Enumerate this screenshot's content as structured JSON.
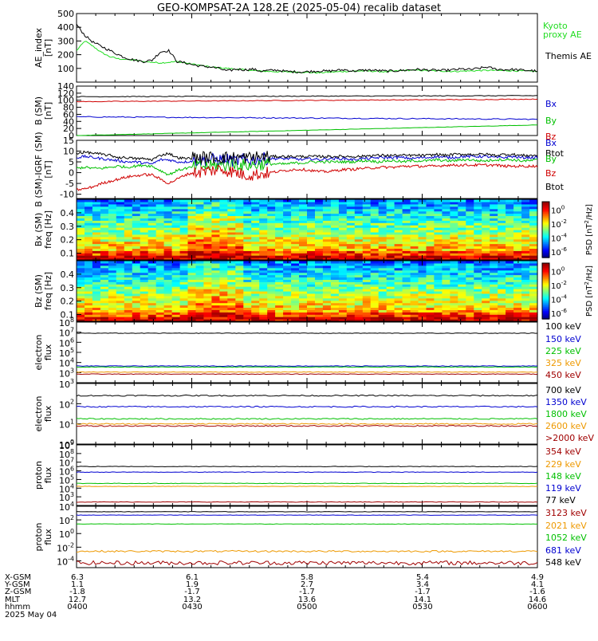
{
  "title": "GEO-KOMPSAT-2A 128.2E (2025-05-04) recalib dataset",
  "colors": {
    "black": "#000000",
    "blue": "#0000d0",
    "green": "#00c000",
    "red": "#d00000",
    "lime": "#22dd22",
    "orange": "#ee9900",
    "maroon": "#a00000"
  },
  "chart_data": [
    {
      "id": "ae",
      "type": "line",
      "ylabel": "AE_index [nT]",
      "ylim": [
        0,
        500
      ],
      "yticks": [
        "100",
        "200",
        "300",
        "400",
        "500"
      ],
      "series": [
        {
          "name": "Kyoto proxy AE",
          "color": "#22dd22",
          "values": [
            230,
            300,
            260,
            215,
            185,
            170,
            165,
            160,
            150,
            145,
            140,
            145,
            150,
            140,
            130,
            120,
            110,
            105,
            100,
            95,
            90,
            85,
            80,
            78,
            76,
            75,
            74,
            72,
            70,
            68,
            72,
            75,
            78,
            80,
            82,
            80,
            78,
            75,
            80,
            85,
            88,
            86,
            84,
            82,
            80,
            78,
            80,
            82,
            84,
            86,
            85,
            84,
            83,
            82,
            80,
            78
          ]
        },
        {
          "name": "Themis AE",
          "color": "#000000",
          "values": [
            420,
            340,
            290,
            260,
            230,
            200,
            175,
            160,
            150,
            160,
            220,
            230,
            150,
            140,
            125,
            115,
            110,
            100,
            80,
            95,
            90,
            95,
            80,
            85,
            88,
            78,
            76,
            74,
            78,
            82,
            80,
            85,
            90,
            80,
            85,
            88,
            84,
            80,
            82,
            86,
            90,
            92,
            88,
            86,
            85,
            90,
            95,
            92,
            100,
            110,
            95,
            90,
            92,
            88,
            85,
            80
          ]
        }
      ],
      "legend": [
        "Kyoto proxy AE",
        "Themis AE"
      ]
    },
    {
      "id": "bsm",
      "type": "line",
      "ylabel": "B (SM) [nT]",
      "ylim": [
        0,
        140
      ],
      "yticks": [
        "0",
        "20",
        "40",
        "60",
        "80",
        "100",
        "120",
        "140"
      ],
      "series": [
        {
          "name": "Bx",
          "color": "#0000d0",
          "start": 53,
          "end": 46,
          "noise": 1.5
        },
        {
          "name": "By",
          "color": "#00c000",
          "start": 0,
          "end": 30,
          "noise": 0.5
        },
        {
          "name": "Bz",
          "color": "#d00000",
          "start": 96,
          "end": 103,
          "noise": 1.0
        },
        {
          "name": "Btot",
          "color": "#000000",
          "start": 110,
          "end": 113,
          "noise": 1.0
        }
      ],
      "legend": [
        "Bx",
        "By",
        "Bz",
        "Btot"
      ]
    },
    {
      "id": "bigrf",
      "type": "line",
      "ylabel": "B (SM)-IGRF (SM) [nT]",
      "ylim": [
        -12,
        15
      ],
      "yticks": [
        "-10",
        "-5",
        "0",
        "5",
        "10",
        "15"
      ],
      "series": [
        {
          "name": "Bx",
          "color": "#0000d0",
          "values": [
            7,
            7.5,
            7,
            6.5,
            6,
            5.5,
            5,
            5,
            4.5,
            4,
            6,
            6,
            5,
            5,
            5.5,
            6,
            6,
            6,
            6,
            5.5,
            6,
            6,
            6.5,
            6.5,
            6.5,
            6.5,
            6.5,
            6,
            6.5,
            6,
            6.5,
            6.5,
            6.5,
            6,
            6.5,
            6.5,
            7,
            7,
            7,
            7,
            6.5,
            7,
            7,
            7.5,
            7,
            7,
            7.5,
            7.5,
            7.5,
            7.5,
            7,
            7,
            7.5,
            7,
            7,
            7
          ]
        },
        {
          "name": "By",
          "color": "#00c000",
          "values": [
            2,
            2.5,
            2,
            2,
            2.5,
            3,
            2.5,
            3,
            3.5,
            3,
            1,
            -1,
            1,
            2,
            2.5,
            3,
            3,
            3.5,
            3.5,
            4,
            3.5,
            3.5,
            4,
            4,
            4,
            4,
            4.5,
            4.5,
            5,
            5,
            5,
            5,
            5,
            5,
            5.5,
            5.5,
            5,
            5.5,
            5.5,
            5,
            5.5,
            5.5,
            5.5,
            6,
            5.5,
            5.5,
            6,
            6,
            5.5,
            5.5,
            6,
            6,
            6,
            5.5,
            5.5,
            6
          ]
        },
        {
          "name": "Bz",
          "color": "#d00000",
          "values": [
            -8,
            -7.5,
            -6.5,
            -5,
            -4,
            -3,
            -2,
            -1.5,
            -1,
            -1,
            -3,
            -5,
            -3,
            -1,
            0,
            0.5,
            1,
            1.5,
            1,
            0,
            -1,
            -1,
            -0.5,
            0,
            0.5,
            1,
            1.5,
            1.5,
            1,
            0.5,
            0.5,
            1,
            1.5,
            1.5,
            2,
            2,
            2.5,
            2.5,
            2.5,
            3,
            3,
            3,
            3,
            3,
            3.5,
            3.5,
            3.5,
            3.5,
            3.5,
            3.5,
            3.5,
            3,
            3,
            3,
            3,
            3
          ]
        },
        {
          "name": "Btot",
          "color": "#000000",
          "values": [
            9,
            9.5,
            9,
            8.5,
            8,
            7,
            7,
            6.5,
            6.5,
            6,
            8,
            9,
            7,
            6.5,
            7,
            7,
            7,
            7,
            7,
            7,
            7,
            7,
            7.5,
            7.5,
            7.5,
            7.5,
            7.5,
            7.5,
            7.5,
            7.5,
            7.5,
            7.5,
            7.5,
            7.5,
            7.5,
            8,
            8,
            8,
            8,
            8,
            8,
            8,
            8,
            8.5,
            8,
            8.5,
            8.5,
            8.5,
            8.5,
            8.5,
            8,
            8.5,
            8.5,
            8,
            8,
            8
          ]
        }
      ],
      "legend": [
        "Bx",
        "By",
        "Bz",
        "Btot"
      ]
    },
    {
      "id": "bxspec",
      "type": "heatmap",
      "ylabel": "Bx (SM) freq [Hz]",
      "ylim": [
        0.05,
        0.5
      ],
      "yticks": [
        "0.1",
        "0.2",
        "0.3",
        "0.4"
      ],
      "colorbar": {
        "label": "PSD [nT^2/Hz]",
        "ticks": [
          "10^0",
          "10^-2",
          "10^-4",
          "10^-6"
        ]
      }
    },
    {
      "id": "bzspec",
      "type": "heatmap",
      "ylabel": "Bz (SM) freq [Hz]",
      "ylim": [
        0.05,
        0.5
      ],
      "yticks": [
        "0.1",
        "0.2",
        "0.3",
        "0.4"
      ],
      "colorbar": {
        "label": "PSD [nT^2/Hz]",
        "ticks": [
          "10^0",
          "10^-2",
          "10^-4",
          "10^-6"
        ]
      }
    },
    {
      "id": "eflux1",
      "type": "line",
      "ylabel": "electron flux",
      "log": true,
      "ylim": [
        2,
        8
      ],
      "yticks": [
        "10^3",
        "10^4",
        "10^5",
        "10^6",
        "10^7",
        "10^8"
      ],
      "ytick_values": [
        3,
        4,
        5,
        6,
        7,
        8
      ],
      "series": [
        {
          "name": "100 keV",
          "color": "#000000",
          "level": 6.9
        },
        {
          "name": "150 keV",
          "color": "#0000d0",
          "level": 3.65
        },
        {
          "name": "225 keV",
          "color": "#00c000",
          "level": 3.55
        },
        {
          "name": "325 keV",
          "color": "#ee9900",
          "level": 3.05
        },
        {
          "name": "450 keV",
          "color": "#a00000",
          "level": 2.85
        }
      ]
    },
    {
      "id": "eflux2",
      "type": "line",
      "ylabel": "electron flux",
      "log": true,
      "ylim": [
        0,
        3
      ],
      "yticks": [
        "10^0",
        "10^1",
        "10^2",
        "10^3"
      ],
      "ytick_values": [
        0,
        1,
        2,
        3
      ],
      "series": [
        {
          "name": "700 keV",
          "color": "#000000",
          "level": 2.4
        },
        {
          "name": "1350 keV",
          "color": "#0000d0",
          "level": 1.85
        },
        {
          "name": "1800 keV",
          "color": "#00c000",
          "level": 1.25
        },
        {
          "name": "2600 keV",
          "color": "#ee9900",
          "level": 1.0
        },
        {
          "name": ">2000 keV",
          "color": "#a00000",
          "level": 0.9
        }
      ]
    },
    {
      "id": "pflux1",
      "type": "line",
      "ylabel": "proton flux",
      "log": true,
      "ylim": [
        2,
        9
      ],
      "yticks": [
        "10^3",
        "10^4",
        "10^5",
        "10^6",
        "10^7",
        "10^8",
        "10^9"
      ],
      "ytick_values": [
        3,
        4,
        5,
        6,
        7,
        8,
        9
      ],
      "series": [
        {
          "name": "354 keV",
          "color": "#a00000",
          "level": 2.4
        },
        {
          "name": "229 keV",
          "color": "#ee9900",
          "level": 4.2
        },
        {
          "name": "148 keV",
          "color": "#00c000",
          "level": 4.55
        },
        {
          "name": "119 keV",
          "color": "#0000d0",
          "level": 5.85
        },
        {
          "name": "77 keV",
          "color": "#000000",
          "level": 6.5
        }
      ]
    },
    {
      "id": "pflux2",
      "type": "line",
      "ylabel": "proton flux",
      "log": true,
      "ylim": [
        -5,
        4
      ],
      "yticks": [
        "10^-4",
        "10^-2",
        "10^0",
        "10^2",
        "10^4"
      ],
      "ytick_values": [
        -4,
        -2,
        0,
        2,
        4
      ],
      "series": [
        {
          "name": "3123 keV",
          "color": "#a00000",
          "level": -4.3
        },
        {
          "name": "2021 keV",
          "color": "#ee9900",
          "level": -2.6
        },
        {
          "name": "1052 keV",
          "color": "#00c000",
          "level": 1.4
        },
        {
          "name": "681 keV",
          "color": "#0000d0",
          "level": 2.7
        },
        {
          "name": "548 keV",
          "color": "#000000",
          "level": 3.2
        }
      ]
    }
  ],
  "ephemeris": {
    "labels": [
      "X-GSM",
      "Y-GSM",
      "Z-GSM",
      "MLT",
      "hhmm"
    ],
    "columns": [
      [
        "6.3",
        "1.1",
        "-1.8",
        "12.7",
        "0400"
      ],
      [
        "6.1",
        "1.9",
        "-1.7",
        "13.2",
        "0430"
      ],
      [
        "5.8",
        "2.7",
        "-1.7",
        "13.6",
        "0500"
      ],
      [
        "5.4",
        "3.4",
        "-1.7",
        "14.1",
        "0530"
      ],
      [
        "4.9",
        "4.1",
        "-1.6",
        "14.6",
        "0600"
      ]
    ],
    "date": "2025 May 04"
  },
  "legend_colors": {
    "ae": [
      "#22dd22",
      "#000000"
    ],
    "b": [
      "#0000d0",
      "#00c000",
      "#d00000",
      "#000000"
    ]
  }
}
